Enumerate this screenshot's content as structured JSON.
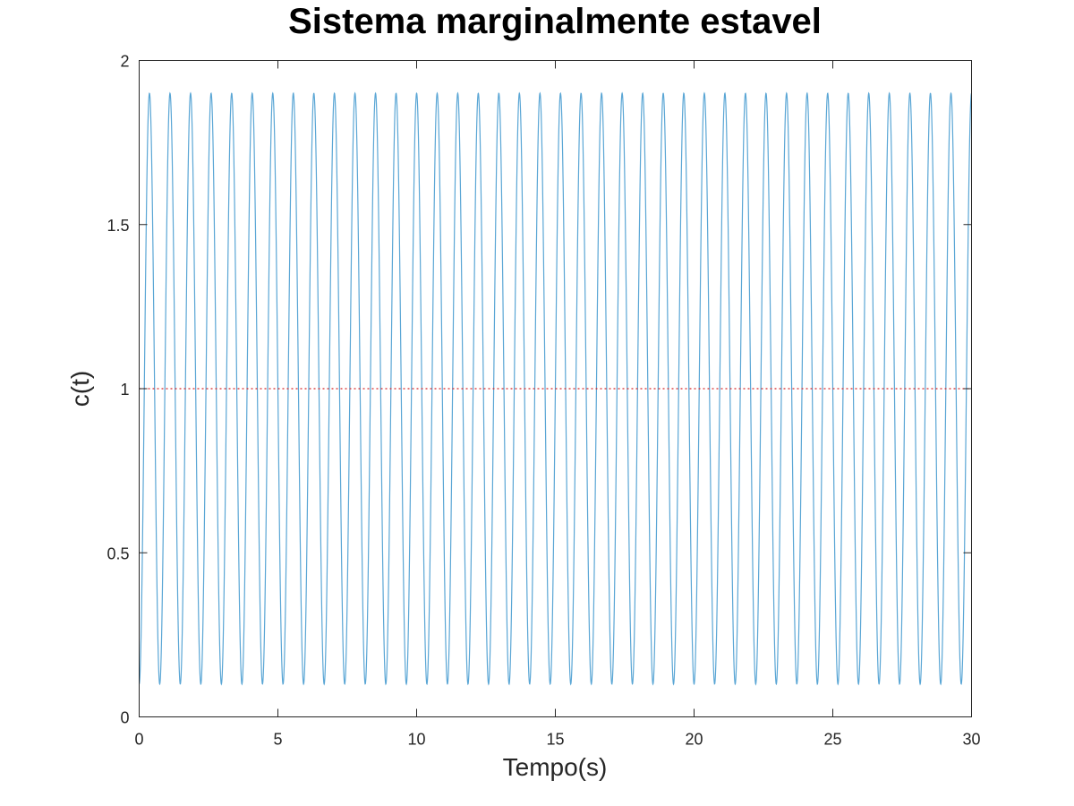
{
  "chart_data": {
    "type": "line",
    "title": "Sistema marginalmente estavel",
    "xlabel": "Tempo(s)",
    "ylabel": "c(t)",
    "xlim": [
      0,
      30
    ],
    "ylim": [
      0,
      2
    ],
    "xticks": [
      0,
      5,
      10,
      15,
      20,
      25,
      30
    ],
    "yticks": [
      0,
      0.5,
      1,
      1.5,
      2
    ],
    "xtick_labels": [
      "0",
      "5",
      "10",
      "15",
      "20",
      "25",
      "30"
    ],
    "ytick_labels": [
      "0",
      "0.5",
      "1",
      "1.5",
      "2"
    ],
    "grid": false,
    "legend": "none",
    "series": [
      {
        "kind": "response",
        "formula": "c(t) = 1 - 0.9*cos(2*pi*f*t)",
        "offset": 1,
        "amplitude": 0.9,
        "cycles_in_range": 40.5,
        "t_range": [
          0,
          30
        ],
        "min": 0.1,
        "max": 1.9,
        "color": "#5aa6d5",
        "style": "solid"
      },
      {
        "kind": "reference",
        "y": 1,
        "t_range": [
          0,
          30
        ],
        "color": "#d62728",
        "style": "dotted"
      }
    ]
  }
}
